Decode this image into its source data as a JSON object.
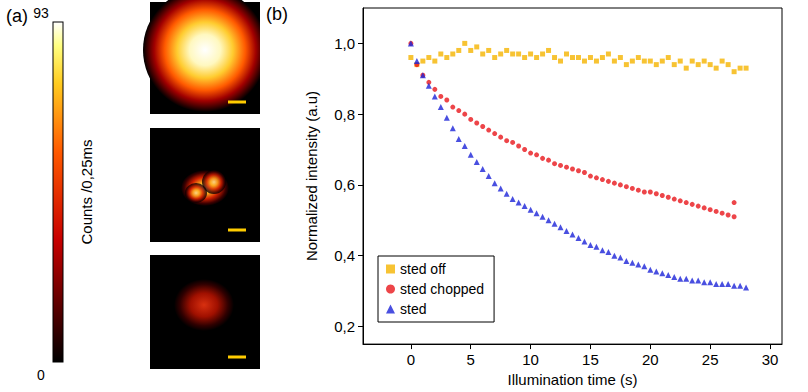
{
  "figure_a": {
    "label": "(a)",
    "colorbar": {
      "title": "Counts /0,25ms",
      "range": [
        0,
        93
      ],
      "ticks": [
        0,
        93
      ]
    }
  },
  "chart_data": {
    "type": "scatter",
    "label": "(b)",
    "x_label": "Illumination time (s)",
    "y_label": "Normalized intensity (a.u)",
    "xlim": [
      -4,
      31
    ],
    "xticks": [
      0,
      5,
      10,
      15,
      20,
      25,
      30
    ],
    "ylim": [
      0.15,
      1.1
    ],
    "yticks": [
      {
        "value": 0.2,
        "label": "0,2"
      },
      {
        "value": 0.4,
        "label": "0,4"
      },
      {
        "value": 0.6,
        "label": "0,6"
      },
      {
        "value": 0.8,
        "label": "0,8"
      },
      {
        "value": 1.0,
        "label": "1,0"
      }
    ],
    "grid": false,
    "legend": "lower left",
    "series": [
      {
        "name": "sted off",
        "color": "#f5b400",
        "marker": "square",
        "x": [
          0,
          0.5,
          1,
          1.5,
          2,
          2.5,
          3,
          3.5,
          4,
          4.5,
          5,
          5.5,
          6,
          6.5,
          7,
          7.5,
          8,
          8.5,
          9,
          9.5,
          10,
          10.5,
          11,
          11.5,
          12,
          12.5,
          13,
          13.5,
          14,
          14.5,
          15,
          15.5,
          16,
          16.5,
          17,
          17.5,
          18,
          18.5,
          19,
          19.5,
          20,
          20.5,
          21,
          21.5,
          22,
          22.5,
          23,
          23.5,
          24,
          24.5,
          25,
          25.5,
          26,
          26.5,
          27,
          27.5,
          28
        ],
        "values": [
          0.96,
          0.94,
          0.95,
          0.96,
          0.95,
          0.97,
          0.96,
          0.97,
          0.98,
          1.0,
          0.98,
          0.99,
          0.97,
          0.98,
          0.96,
          0.97,
          0.98,
          0.97,
          0.97,
          0.96,
          0.97,
          0.96,
          0.97,
          0.98,
          0.96,
          0.95,
          0.97,
          0.96,
          0.96,
          0.95,
          0.96,
          0.95,
          0.96,
          0.97,
          0.95,
          0.96,
          0.94,
          0.95,
          0.96,
          0.95,
          0.95,
          0.94,
          0.95,
          0.96,
          0.94,
          0.95,
          0.93,
          0.95,
          0.94,
          0.95,
          0.94,
          0.93,
          0.95,
          0.94,
          0.92,
          0.93,
          0.93
        ]
      },
      {
        "name": "sted chopped",
        "color": "#e8161b",
        "marker": "circle",
        "x": [
          0,
          0.5,
          1,
          1.5,
          2,
          2.5,
          3,
          3.5,
          4,
          4.5,
          5,
          5.5,
          6,
          6.5,
          7,
          7.5,
          8,
          8.5,
          9,
          9.5,
          10,
          10.5,
          11,
          11.5,
          12,
          12.5,
          13,
          13.5,
          14,
          14.5,
          15,
          15.5,
          16,
          16.5,
          17,
          17.5,
          18,
          18.5,
          19,
          19.5,
          20,
          20.5,
          21,
          21.5,
          22,
          22.5,
          23,
          23.5,
          24,
          24.5,
          25,
          25.5,
          26,
          26.5,
          27,
          27
        ],
        "values": [
          1.0,
          0.94,
          0.91,
          0.89,
          0.87,
          0.85,
          0.84,
          0.82,
          0.81,
          0.8,
          0.785,
          0.775,
          0.765,
          0.755,
          0.745,
          0.735,
          0.725,
          0.72,
          0.71,
          0.7,
          0.69,
          0.685,
          0.675,
          0.67,
          0.66,
          0.655,
          0.65,
          0.645,
          0.64,
          0.635,
          0.625,
          0.62,
          0.615,
          0.61,
          0.605,
          0.6,
          0.595,
          0.59,
          0.585,
          0.58,
          0.58,
          0.575,
          0.57,
          0.565,
          0.56,
          0.555,
          0.55,
          0.545,
          0.54,
          0.535,
          0.53,
          0.525,
          0.52,
          0.515,
          0.51,
          0.55
        ]
      },
      {
        "name": "sted",
        "color": "#1c23d8",
        "marker": "triangle",
        "x": [
          0,
          0.5,
          1,
          1.5,
          2,
          2.5,
          3,
          3.5,
          4,
          4.5,
          5,
          5.5,
          6,
          6.5,
          7,
          7.5,
          8,
          8.5,
          9,
          9.5,
          10,
          10.5,
          11,
          11.5,
          12,
          12.5,
          13,
          13.5,
          14,
          14.5,
          15,
          15.5,
          16,
          16.5,
          17,
          17.5,
          18,
          18.5,
          19,
          19.5,
          20,
          20.5,
          21,
          21.5,
          22,
          22.5,
          23,
          23.5,
          24,
          24.5,
          25,
          25.5,
          26,
          26.5,
          27,
          27.5,
          28
        ],
        "values": [
          1.0,
          0.95,
          0.91,
          0.88,
          0.85,
          0.82,
          0.79,
          0.76,
          0.73,
          0.71,
          0.685,
          0.665,
          0.645,
          0.625,
          0.605,
          0.59,
          0.575,
          0.56,
          0.55,
          0.54,
          0.53,
          0.52,
          0.51,
          0.5,
          0.49,
          0.48,
          0.47,
          0.46,
          0.45,
          0.44,
          0.43,
          0.425,
          0.415,
          0.41,
          0.4,
          0.395,
          0.385,
          0.38,
          0.375,
          0.37,
          0.36,
          0.355,
          0.35,
          0.345,
          0.34,
          0.335,
          0.335,
          0.33,
          0.33,
          0.325,
          0.325,
          0.32,
          0.32,
          0.32,
          0.315,
          0.315,
          0.31
        ]
      }
    ]
  }
}
